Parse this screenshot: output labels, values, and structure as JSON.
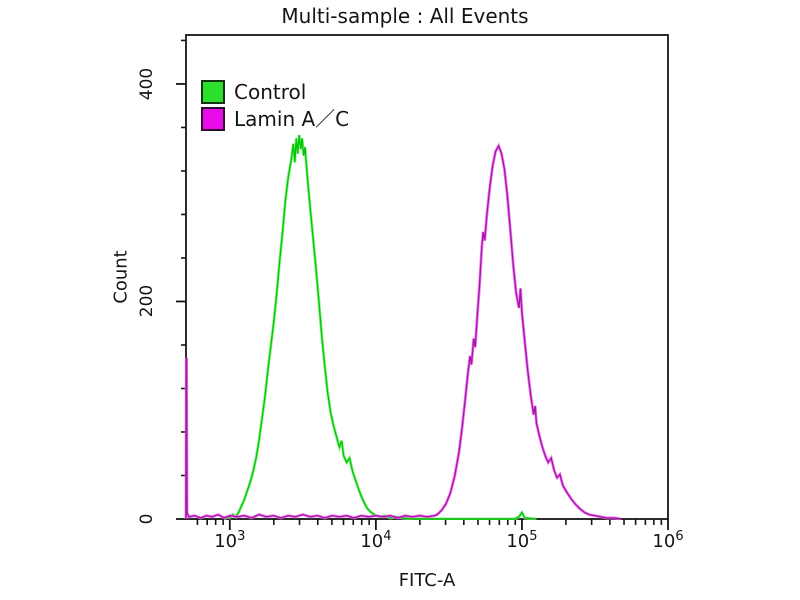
{
  "title": "Multi-sample : All Events",
  "legend": {
    "items": [
      {
        "label": "Control",
        "color": "#2ce02c",
        "border": "#143214"
      },
      {
        "label": "Lamin A／C",
        "color": "#e80ce8",
        "border": "#320a32"
      }
    ]
  },
  "axes": {
    "ylabel": "Count",
    "xlabel": "FITC-A",
    "y_tick_labels": [
      "0",
      "200",
      "400"
    ],
    "x_tick_labels": [
      {
        "base": "10",
        "exp": "3"
      },
      {
        "base": "10",
        "exp": "4"
      },
      {
        "base": "10",
        "exp": "5"
      },
      {
        "base": "10",
        "exp": "6"
      }
    ]
  },
  "chart_data": {
    "type": "line",
    "subtype": "flow-cytometry-overlay-histogram",
    "title": "Multi-sample : All Events",
    "xlabel": "FITC-A",
    "ylabel": "Count",
    "x_scale": "log10",
    "x_log_range": [
      2.7,
      6.0
    ],
    "x_major_exponents": [
      3,
      4,
      5,
      6
    ],
    "y_range": [
      0,
      445
    ],
    "y_major_ticks": [
      0,
      200,
      400
    ],
    "y_minor_ticks": [
      40,
      80,
      120,
      160,
      240,
      280,
      320,
      360,
      440
    ],
    "grid": false,
    "legend_position": "top-left-inside",
    "series": [
      {
        "name": "Control",
        "color": "#00c800",
        "glow": "#82ee82",
        "peak_x": 3000,
        "peak_count": 353,
        "points": [
          [
            2.96,
            0
          ],
          [
            2.98,
            2
          ],
          [
            3.0,
            1
          ],
          [
            3.02,
            4
          ],
          [
            3.04,
            2
          ],
          [
            3.06,
            6
          ],
          [
            3.08,
            12
          ],
          [
            3.1,
            18
          ],
          [
            3.12,
            26
          ],
          [
            3.14,
            34
          ],
          [
            3.16,
            44
          ],
          [
            3.18,
            56
          ],
          [
            3.2,
            72
          ],
          [
            3.22,
            92
          ],
          [
            3.24,
            112
          ],
          [
            3.26,
            136
          ],
          [
            3.28,
            158
          ],
          [
            3.3,
            180
          ],
          [
            3.32,
            206
          ],
          [
            3.34,
            236
          ],
          [
            3.36,
            262
          ],
          [
            3.38,
            292
          ],
          [
            3.4,
            314
          ],
          [
            3.42,
            330
          ],
          [
            3.435,
            345
          ],
          [
            3.445,
            328
          ],
          [
            3.455,
            350
          ],
          [
            3.465,
            336
          ],
          [
            3.475,
            353
          ],
          [
            3.485,
            340
          ],
          [
            3.495,
            350
          ],
          [
            3.505,
            334
          ],
          [
            3.515,
            342
          ],
          [
            3.525,
            324
          ],
          [
            3.535,
            308
          ],
          [
            3.55,
            286
          ],
          [
            3.57,
            258
          ],
          [
            3.59,
            230
          ],
          [
            3.61,
            200
          ],
          [
            3.63,
            168
          ],
          [
            3.65,
            140
          ],
          [
            3.67,
            116
          ],
          [
            3.69,
            98
          ],
          [
            3.71,
            86
          ],
          [
            3.73,
            76
          ],
          [
            3.75,
            66
          ],
          [
            3.765,
            72
          ],
          [
            3.78,
            58
          ],
          [
            3.8,
            52
          ],
          [
            3.82,
            56
          ],
          [
            3.84,
            44
          ],
          [
            3.86,
            36
          ],
          [
            3.88,
            28
          ],
          [
            3.9,
            21
          ],
          [
            3.92,
            15
          ],
          [
            3.94,
            10
          ],
          [
            3.96,
            7
          ],
          [
            3.99,
            4
          ],
          [
            4.02,
            2
          ],
          [
            4.06,
            3
          ],
          [
            4.1,
            1
          ],
          [
            4.14,
            2
          ],
          [
            4.18,
            1
          ],
          [
            4.25,
            0
          ],
          [
            4.5,
            0
          ],
          [
            4.75,
            0
          ],
          [
            4.95,
            0
          ],
          [
            4.98,
            2
          ],
          [
            5.0,
            6
          ],
          [
            5.02,
            1
          ],
          [
            5.1,
            0
          ]
        ]
      },
      {
        "name": "Lamin A／C",
        "color": "#aa14aa",
        "glow": "#f06cf0",
        "peak_x": 69000,
        "peak_count": 343,
        "edge_spike_count": 147,
        "points": [
          [
            2.7,
            0
          ],
          [
            2.702,
            146
          ],
          [
            2.704,
            148
          ],
          [
            2.707,
            6
          ],
          [
            2.72,
            2
          ],
          [
            2.76,
            3
          ],
          [
            2.8,
            1
          ],
          [
            2.84,
            3
          ],
          [
            2.88,
            2
          ],
          [
            2.92,
            4
          ],
          [
            2.96,
            1
          ],
          [
            3.0,
            3
          ],
          [
            3.05,
            2
          ],
          [
            3.1,
            3
          ],
          [
            3.15,
            1
          ],
          [
            3.2,
            4
          ],
          [
            3.25,
            2
          ],
          [
            3.3,
            3
          ],
          [
            3.35,
            1
          ],
          [
            3.4,
            3
          ],
          [
            3.45,
            2
          ],
          [
            3.5,
            4
          ],
          [
            3.55,
            2
          ],
          [
            3.6,
            3
          ],
          [
            3.65,
            1
          ],
          [
            3.7,
            3
          ],
          [
            3.75,
            2
          ],
          [
            3.8,
            3
          ],
          [
            3.85,
            1
          ],
          [
            3.9,
            3
          ],
          [
            3.95,
            2
          ],
          [
            4.0,
            3
          ],
          [
            4.05,
            2
          ],
          [
            4.1,
            3
          ],
          [
            4.15,
            1
          ],
          [
            4.2,
            3
          ],
          [
            4.25,
            2
          ],
          [
            4.3,
            3
          ],
          [
            4.35,
            2
          ],
          [
            4.4,
            3
          ],
          [
            4.42,
            4
          ],
          [
            4.45,
            8
          ],
          [
            4.48,
            14
          ],
          [
            4.51,
            24
          ],
          [
            4.54,
            40
          ],
          [
            4.57,
            62
          ],
          [
            4.59,
            84
          ],
          [
            4.61,
            108
          ],
          [
            4.63,
            134
          ],
          [
            4.645,
            150
          ],
          [
            4.655,
            142
          ],
          [
            4.67,
            166
          ],
          [
            4.68,
            158
          ],
          [
            4.695,
            188
          ],
          [
            4.71,
            216
          ],
          [
            4.725,
            250
          ],
          [
            4.735,
            264
          ],
          [
            4.745,
            256
          ],
          [
            4.76,
            280
          ],
          [
            4.78,
            305
          ],
          [
            4.8,
            325
          ],
          [
            4.82,
            338
          ],
          [
            4.84,
            343
          ],
          [
            4.86,
            336
          ],
          [
            4.88,
            322
          ],
          [
            4.9,
            298
          ],
          [
            4.92,
            266
          ],
          [
            4.94,
            234
          ],
          [
            4.96,
            208
          ],
          [
            4.98,
            194
          ],
          [
            4.99,
            212
          ],
          [
            5.0,
            190
          ],
          [
            5.02,
            162
          ],
          [
            5.04,
            136
          ],
          [
            5.06,
            114
          ],
          [
            5.08,
            96
          ],
          [
            5.09,
            104
          ],
          [
            5.1,
            88
          ],
          [
            5.12,
            76
          ],
          [
            5.14,
            66
          ],
          [
            5.16,
            58
          ],
          [
            5.18,
            52
          ],
          [
            5.2,
            56
          ],
          [
            5.22,
            45
          ],
          [
            5.24,
            38
          ],
          [
            5.26,
            41
          ],
          [
            5.28,
            31
          ],
          [
            5.31,
            24
          ],
          [
            5.34,
            18
          ],
          [
            5.37,
            13
          ],
          [
            5.4,
            9
          ],
          [
            5.43,
            6
          ],
          [
            5.46,
            4
          ],
          [
            5.5,
            3
          ],
          [
            5.54,
            2
          ],
          [
            5.58,
            1
          ],
          [
            5.63,
            1
          ],
          [
            5.68,
            0
          ]
        ]
      }
    ]
  }
}
